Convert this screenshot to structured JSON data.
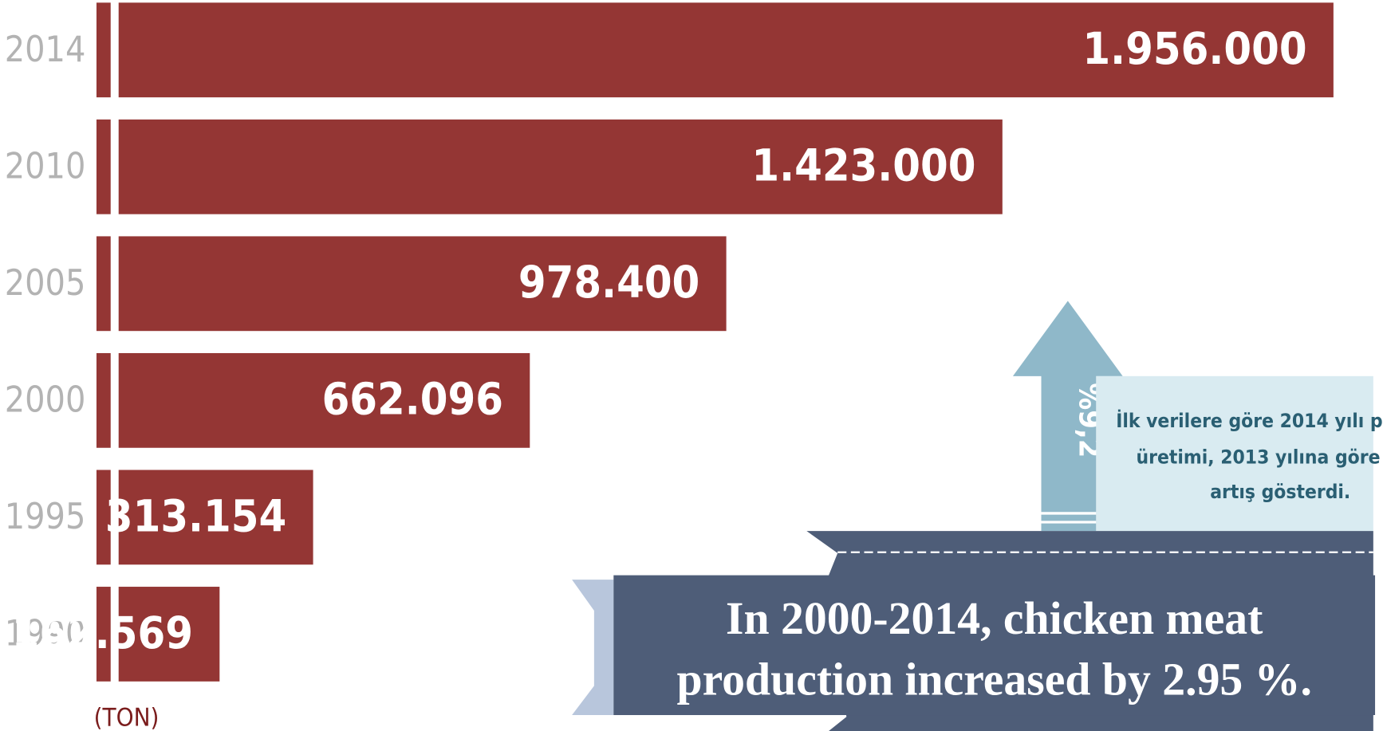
{
  "chart_data": {
    "type": "bar",
    "orientation": "horizontal",
    "categories": [
      "2014",
      "2010",
      "2005",
      "2000",
      "1995",
      "1990"
    ],
    "values": [
      1956000,
      1423000,
      978400,
      662096,
      313154,
      162569
    ],
    "value_labels": [
      "1.956.000",
      "1.423.000",
      "978.400",
      "662.096",
      "313.154",
      "162.569"
    ],
    "color": "#943634",
    "x_label": "(TON)",
    "arrow_label": "%9,2",
    "note_lines": [
      "İlk verilere göre 2014 yılı p",
      "üretimi, 2013 yılına göre",
      "artış gösterdi."
    ],
    "caption_lines": [
      "In 2000-2014, chicken meat",
      "production increased by 2.95 %."
    ]
  }
}
